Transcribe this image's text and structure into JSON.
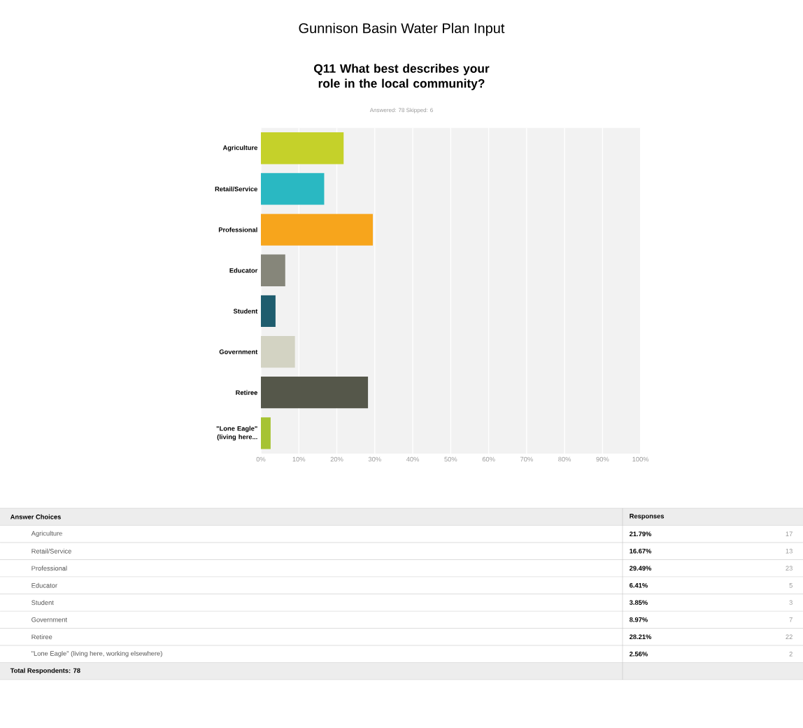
{
  "chart_data": {
    "type": "bar",
    "orientation": "horizontal",
    "title": "Gunnison Basin Water Plan Input",
    "subtitle": "Q11 What best describes your role in the local community?",
    "categories": [
      "Agriculture",
      "Retail/Service",
      "Professional",
      "Educator",
      "Student",
      "Government",
      "Retiree",
      "\"Lone Eagle\" (living here..."
    ],
    "values": [
      21.79,
      16.67,
      29.49,
      6.41,
      3.85,
      8.97,
      28.21,
      2.56
    ],
    "colors": [
      "#c5d12a",
      "#2ab8c2",
      "#f7a51c",
      "#86867a",
      "#1f5d6e",
      "#d3d3c3",
      "#55574a",
      "#a6c332"
    ],
    "xlim": [
      0,
      100
    ],
    "xticks": [
      {
        "value": 0,
        "label": "0%"
      },
      {
        "value": 10,
        "label": "10%"
      },
      {
        "value": 20,
        "label": "20%"
      },
      {
        "value": 30,
        "label": "30%"
      },
      {
        "value": 40,
        "label": "40%"
      },
      {
        "value": 50,
        "label": "50%"
      },
      {
        "value": 60,
        "label": "60%"
      },
      {
        "value": 70,
        "label": "70%"
      },
      {
        "value": 80,
        "label": "80%"
      },
      {
        "value": 90,
        "label": "90%"
      },
      {
        "value": 100,
        "label": "100%"
      }
    ],
    "grid": "x",
    "annotations": [
      "Answered: 78   Skipped: 6",
      "Answer Choices",
      "Responses",
      "Total Respondents: 78",
      "Agriculture",
      "Retail/Service",
      "Professional",
      "Educator",
      "Student",
      "Government",
      "Retiree",
      "\"Lone Eagle\" (living here, working elsewhere)",
      "17",
      "13",
      "23",
      "5",
      "3",
      "7",
      "22",
      "2",
      "21.79%",
      "16.67%",
      "29.49%",
      "6.41%",
      "3.85%",
      "8.97%",
      "28.21%",
      "2.56%"
    ]
  }
}
